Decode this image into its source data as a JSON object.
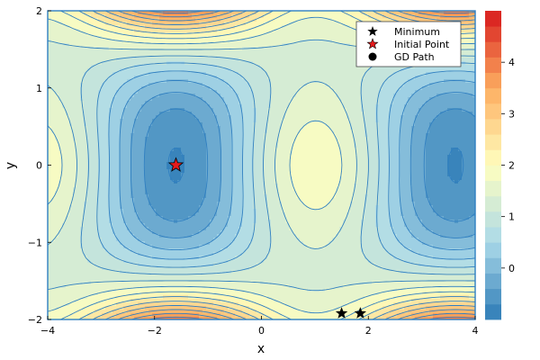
{
  "chart_data": {
    "type": "contour",
    "title": "",
    "xlabel": "x",
    "ylabel": "y",
    "xlim": [
      -4,
      4
    ],
    "ylim": [
      -2,
      2
    ],
    "x_ticks": [
      -4,
      -2,
      0,
      2,
      4
    ],
    "x_tick_labels": [
      "−4",
      "−2",
      "0",
      "2",
      "4"
    ],
    "y_ticks": [
      -2,
      -1,
      0,
      1,
      2
    ],
    "y_tick_labels": [
      "−2",
      "−1",
      "0",
      "1",
      "2"
    ],
    "grid": false,
    "legend_position": "top-right",
    "contour_levels": [
      -1.0,
      -0.7,
      -0.4,
      -0.1,
      0.2,
      0.5,
      0.8,
      1.1,
      1.4,
      1.7,
      2.0,
      2.3,
      2.6,
      2.9,
      3.2,
      3.5,
      3.8,
      4.1,
      4.4,
      4.7,
      5.0
    ],
    "colorbar": {
      "min": -1.0,
      "max": 5.0,
      "ticks": [
        0,
        1,
        2,
        3,
        4
      ],
      "tick_labels": [
        "0",
        "1",
        "2",
        "3",
        "4"
      ],
      "colormap": [
        "#2c7bb6",
        "#abd9e9",
        "#ffffbf",
        "#fdae61",
        "#d7191c"
      ]
    },
    "markers": {
      "minimum_points": [
        [
          1.5,
          -1.92
        ],
        [
          1.85,
          -1.92
        ]
      ],
      "initial_point": [
        -1.6,
        0.0
      ]
    },
    "legend": [
      {
        "label": "Minimum",
        "marker": "star",
        "color": "#000000"
      },
      {
        "label": "Initial Point",
        "marker": "star",
        "color": "#e41a1c"
      },
      {
        "label": "GD Path",
        "marker": "circle",
        "color": "#000000"
      }
    ]
  }
}
